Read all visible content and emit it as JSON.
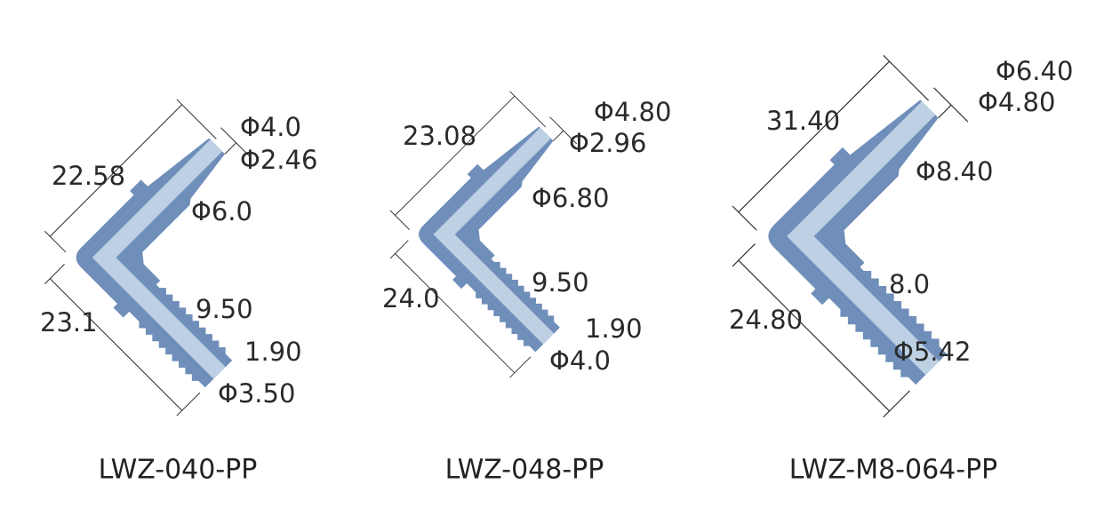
{
  "parts": [
    {
      "name": "LWZ-040-PP",
      "dimensions": [
        "22.58",
        "23.1",
        "Φ4.0",
        "Φ2.46",
        "Φ6.0",
        "9.50",
        "1.90",
        "Φ3.50"
      ]
    },
    {
      "name": "LWZ-048-PP",
      "dimensions": [
        "23.08",
        "24.0",
        "Φ4.80",
        "Φ2.96",
        "Φ6.80",
        "9.50",
        "1.90",
        "Φ4.0"
      ]
    },
    {
      "name": "LWZ-M8-064-PP",
      "dimensions": [
        "31.40",
        "24.80",
        "Φ6.40",
        "Φ4.80",
        "Φ8.40",
        "8.0",
        "Φ5.42"
      ]
    }
  ]
}
